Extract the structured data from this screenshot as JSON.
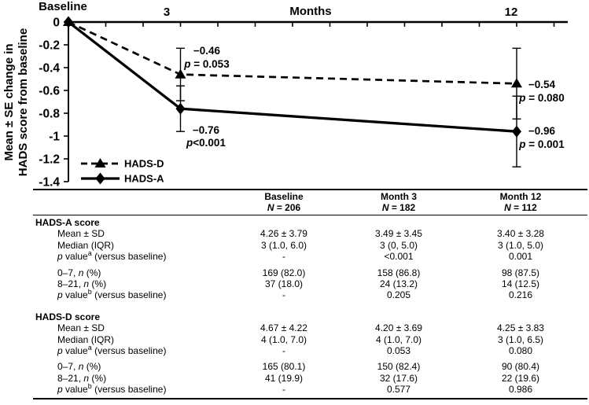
{
  "figure": {
    "background": "#ffffff",
    "ink": "#000000"
  },
  "chart_data": {
    "type": "line",
    "title": "",
    "x_axis": {
      "label": "Months",
      "range_months": [
        0,
        13
      ],
      "tick_interval_months": 1,
      "tick_labels": [
        "Baseline",
        "3",
        "12"
      ],
      "tick_label_months": [
        0,
        3,
        12
      ],
      "axis_position": "top"
    },
    "y_axis": {
      "label_line1": "Mean ± SE change in",
      "label_line2": "HADS score from baseline",
      "range": [
        -1.4,
        0
      ],
      "ticks": [
        {
          "v": 0,
          "label": "0"
        },
        {
          "v": -0.2,
          "label": "-0.2"
        },
        {
          "v": -0.4,
          "label": "-0.4"
        },
        {
          "v": -0.6,
          "label": "-0.6"
        },
        {
          "v": -0.8,
          "label": "-0.8"
        },
        {
          "v": -1,
          "label": "-1"
        },
        {
          "v": -1.2,
          "label": "-1.2"
        },
        {
          "v": -1.4,
          "label": "-1.4"
        }
      ]
    },
    "series": [
      {
        "name": "HADS-D",
        "line_style": "dashed",
        "marker": "triangle",
        "x": [
          0,
          3,
          12
        ],
        "y": [
          0,
          -0.46,
          -0.54
        ],
        "se": [
          null,
          0.23,
          0.31
        ]
      },
      {
        "name": "HADS-A",
        "line_style": "solid",
        "marker": "diamond",
        "x": [
          0,
          3,
          12
        ],
        "y": [
          0,
          -0.76,
          -0.96
        ],
        "se": [
          null,
          0.2,
          0.31
        ]
      }
    ],
    "annotations": [
      {
        "series": "HADS-D",
        "month": 3,
        "value_text": "−0.46",
        "p_text": "p = 0.053"
      },
      {
        "series": "HADS-A",
        "month": 3,
        "value_text": "−0.76",
        "p_text": "p<0.001"
      },
      {
        "series": "HADS-D",
        "month": 12,
        "value_text": "−0.54",
        "p_text": "p = 0.080"
      },
      {
        "series": "HADS-A",
        "month": 12,
        "value_text": "−0.96",
        "p_text": "p = 0.001"
      }
    ],
    "legend": {
      "entries": [
        "HADS-D",
        "HADS-A"
      ],
      "position": "bottom-left-inside",
      "grid": "off"
    }
  },
  "table": {
    "n_prefix": "N",
    "columns": [
      {
        "label": "Baseline",
        "n": "206"
      },
      {
        "label": "Month 3",
        "n": "182"
      },
      {
        "label": "Month 12",
        "n": "112"
      }
    ],
    "sections": [
      {
        "title": "HADS-A score",
        "groups": [
          {
            "rows": [
              {
                "label": "Mean ± SD",
                "values": [
                  "4.26 ± 3.79",
                  "3.49 ± 3.45",
                  "3.40 ± 3.28"
                ]
              },
              {
                "label": "Median (IQR)",
                "values": [
                  "3 (1.0, 6.0)",
                  "3 (0, 5.0)",
                  "3 (1.0, 5.0)"
                ]
              },
              {
                "label": "*p* value^a^ (versus baseline)",
                "values": [
                  "-",
                  "<0.001",
                  "0.001"
                ]
              }
            ]
          },
          {
            "rows": [
              {
                "label": "0–7, *n* (%)",
                "values": [
                  "169 (82.0)",
                  "158 (86.8)",
                  "98 (87.5)"
                ]
              },
              {
                "label": "8–21, *n* (%)",
                "values": [
                  "37 (18.0)",
                  "24 (13.2)",
                  "14 (12.5)"
                ]
              },
              {
                "label": "*p* value^b^ (versus baseline)",
                "values": [
                  "-",
                  "0.205",
                  "0.216"
                ]
              }
            ]
          }
        ]
      },
      {
        "title": "HADS-D score",
        "groups": [
          {
            "rows": [
              {
                "label": "Mean ± SD",
                "values": [
                  "4.67 ± 4.22",
                  "4.20 ± 3.69",
                  "4.25 ± 3.83"
                ]
              },
              {
                "label": "Median (IQR)",
                "values": [
                  "4 (1.0, 7.0)",
                  "4 (1.0, 7.0)",
                  "3 (1.0, 6.5)"
                ]
              },
              {
                "label": "*p* value^a^ (versus baseline)",
                "values": [
                  "-",
                  "0.053",
                  "0.080"
                ]
              }
            ]
          },
          {
            "rows": [
              {
                "label": "0–7, *n* (%)",
                "values": [
                  "165 (80.1)",
                  "150 (82.4)",
                  "90 (80.4)"
                ]
              },
              {
                "label": "8–21, *n* (%)",
                "values": [
                  "41 (19.9)",
                  "32 (17.6)",
                  "22 (19.6)"
                ]
              },
              {
                "label": "*p* value^b^ (versus baseline)",
                "values": [
                  "-",
                  "0.577",
                  "0.986"
                ]
              }
            ]
          }
        ]
      }
    ]
  }
}
